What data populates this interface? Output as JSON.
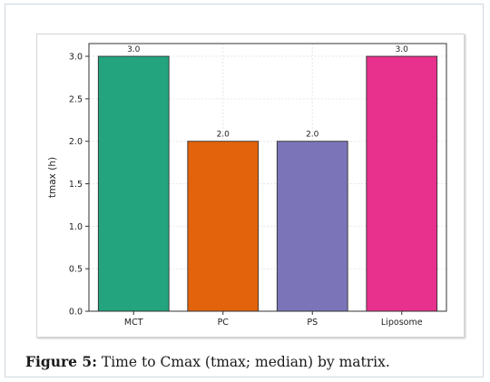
{
  "caption": {
    "label": "Figure 5:",
    "text": "Time to Cmax (tmax; median) by matrix."
  },
  "chart_data": {
    "type": "bar",
    "title": "",
    "xlabel": "",
    "ylabel": "tmax (h)",
    "categories": [
      "MCT",
      "PC",
      "PS",
      "Liposome"
    ],
    "values": [
      3.0,
      2.0,
      2.0,
      3.0
    ],
    "data_labels": [
      "3.0",
      "2.0",
      "2.0",
      "3.0"
    ],
    "colors": [
      "#23a47e",
      "#e2630b",
      "#7b74b8",
      "#e8318c"
    ],
    "ylim": [
      0,
      3.15
    ],
    "yticks": [
      0.0,
      0.5,
      1.0,
      1.5,
      2.0,
      2.5,
      3.0
    ],
    "ytick_labels": [
      "0.0",
      "0.5",
      "1.0",
      "1.5",
      "2.0",
      "2.5",
      "3.0"
    ],
    "grid": true,
    "legend": "none"
  }
}
